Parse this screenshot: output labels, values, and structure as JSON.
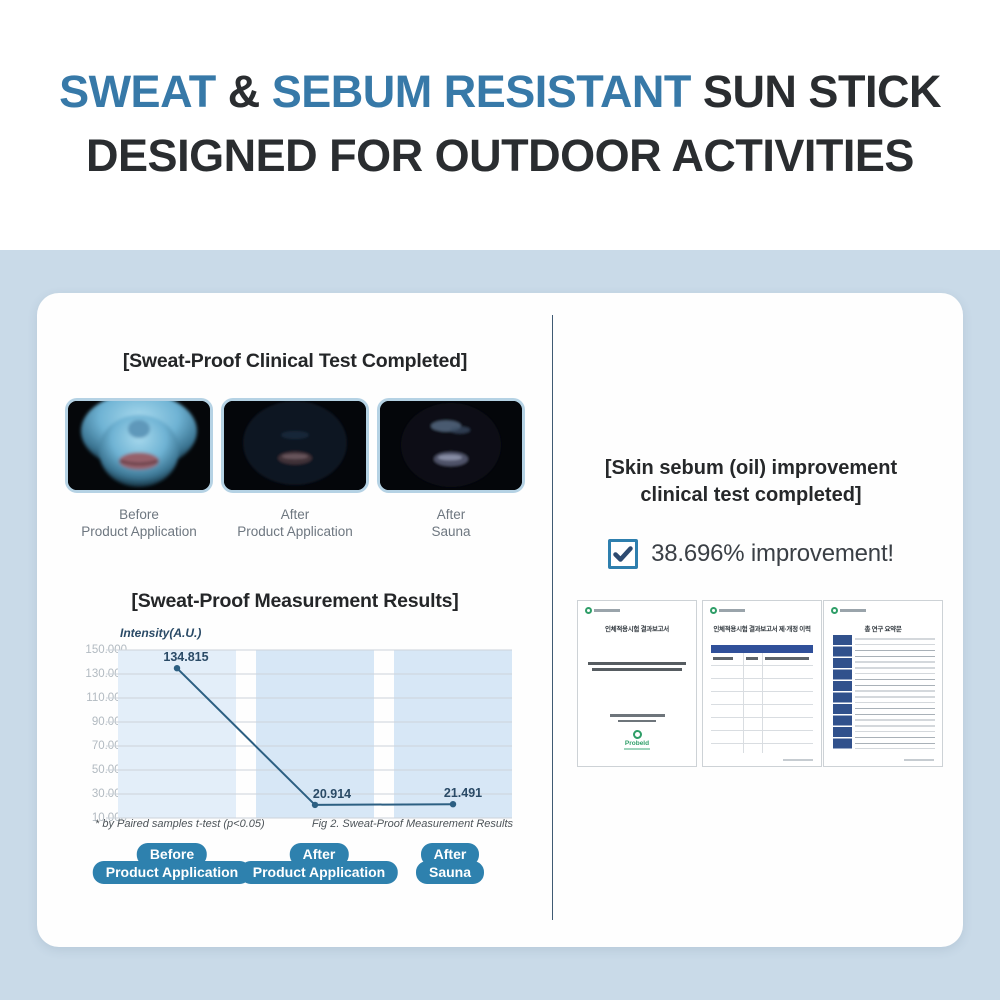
{
  "header": {
    "sweat": "SWEAT",
    "amp": " & ",
    "sebum": "SEBUM RESISTANT",
    "sun_stick": " SUN STICK",
    "line2": "DESIGNED FOR OUTDOOR ACTIVITIES",
    "accent_color": "#3779a8",
    "text_color": "#2a2d30"
  },
  "left_panel": {
    "clinical_heading": "[Sweat-Proof Clinical Test Completed]",
    "photos": [
      {
        "caption_line1": "Before",
        "caption_line2": "Product Application",
        "image": "uv-photo-bright-blue-lower-face"
      },
      {
        "caption_line1": "After",
        "caption_line2": "Product Application",
        "image": "uv-photo-dark-face-faint-lips"
      },
      {
        "caption_line1": "After",
        "caption_line2": "Sauna",
        "image": "uv-photo-dark-face-faint-highlights"
      }
    ],
    "results_heading": "[Sweat-Proof Measurement Results]",
    "footnote": "* by Paired samples t-test (p<0.05)",
    "fig_caption": "Fig 2. Sweat-Proof Measurement Results",
    "category_buttons": [
      {
        "line1": "Before",
        "line2": "Product Application"
      },
      {
        "line1": "After",
        "line2": "Product Application"
      },
      {
        "line1": "After",
        "line2": "Sauna"
      }
    ],
    "button_color": "#2e81ae"
  },
  "chart_data": {
    "type": "line",
    "title": "[Sweat-Proof Measurement Results]",
    "ylabel": "Intensity(A.U.)",
    "xlabel": "",
    "categories": [
      "Before Product Application",
      "After Product Application",
      "After Sauna"
    ],
    "values": [
      134815,
      20914,
      21491
    ],
    "value_labels": [
      "134.815",
      "20.914",
      "21.491"
    ],
    "ytick_labels": [
      "150.000",
      "130.000",
      "110.000",
      "90.000",
      "70.000",
      "50.000",
      "30.000",
      "10.000"
    ],
    "ylim": [
      10000,
      150000
    ],
    "grid": "horizontal",
    "legend": "none",
    "line_color": "#2c5f82",
    "band_color": "#d7e7f6"
  },
  "right_panel": {
    "heading_line1": "[Skin sebum (oil) improvement",
    "heading_line2": "clinical test completed]",
    "improvement_text": "38.696% improvement!",
    "checkbox_color": "#2e7fae",
    "documents": [
      {
        "title": "인체적용시험 결과보고서",
        "footer_logo": "Probeld"
      },
      {
        "title": "인체적용시험 결과보고서 제·개정 이력"
      },
      {
        "title": "총 연구 요약문"
      }
    ]
  }
}
